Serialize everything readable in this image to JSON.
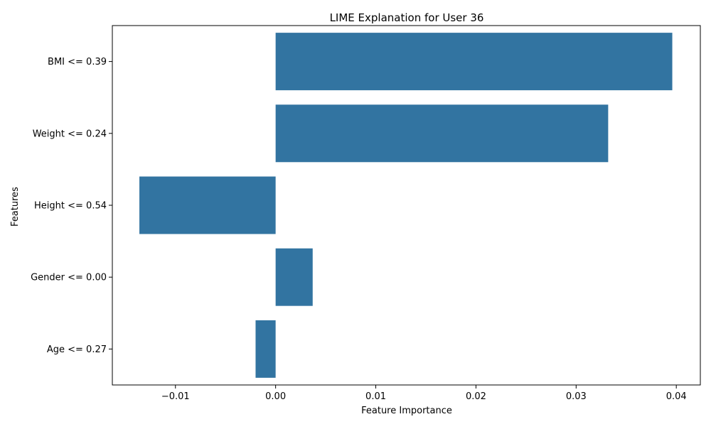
{
  "chart_data": {
    "type": "bar",
    "orientation": "horizontal",
    "title": "LIME Explanation for User 36",
    "xlabel": "Feature Importance",
    "ylabel": "Features",
    "categories": [
      "BMI <= 0.39",
      "Weight <= 0.24",
      "Height <= 0.54",
      "Gender <= 0.00",
      "Age <= 0.27"
    ],
    "values": [
      0.0396,
      0.0332,
      -0.0136,
      0.0037,
      -0.002
    ],
    "xlim": [
      -0.0163,
      0.0424
    ],
    "xticks": [
      -0.01,
      0.0,
      0.01,
      0.02,
      0.03,
      0.04
    ],
    "xtick_labels": [
      "−0.01",
      "0.00",
      "0.01",
      "0.02",
      "0.03",
      "0.04"
    ],
    "bar_color": "#3274a1",
    "grid": false,
    "legend": "none"
  }
}
